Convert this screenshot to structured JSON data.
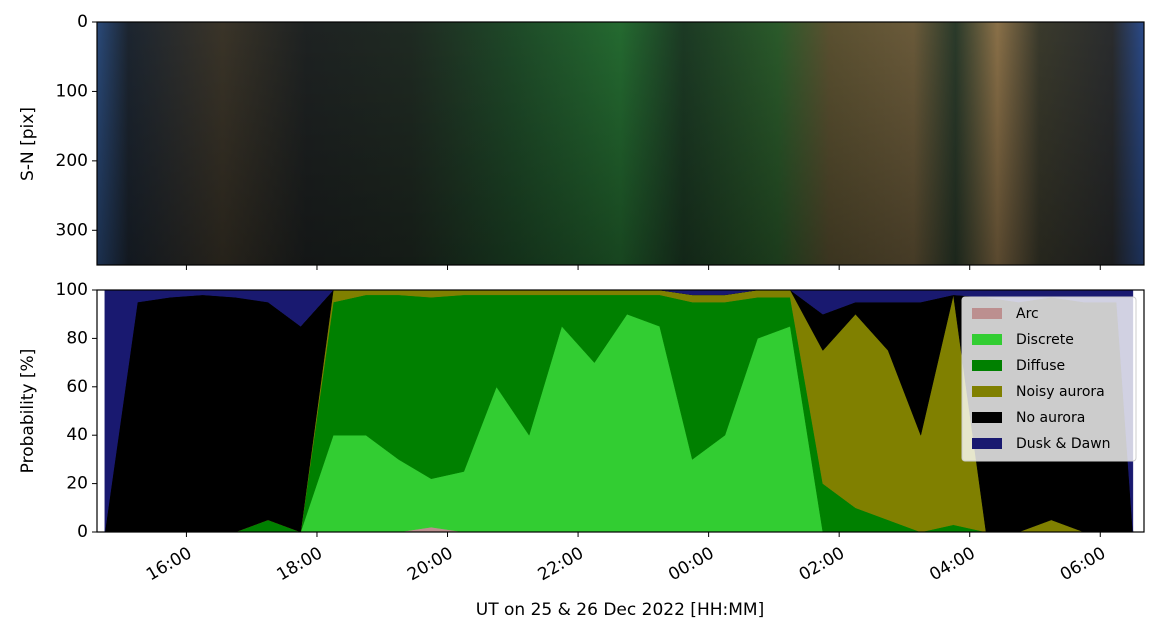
{
  "chart_data": [
    {
      "type": "keogram",
      "ylabel": "S-N [pix]",
      "ylim": [
        350,
        0
      ],
      "yticks": [
        0,
        100,
        200,
        300
      ]
    },
    {
      "type": "stackedarea",
      "ylabel": "Probability [%]",
      "xlabel": "UT on 25 & 26 Dec 2022 [HH:MM]",
      "xlim": [
        14.63,
        30.67
      ],
      "xticks": [
        {
          "value": 16,
          "label": "16:00"
        },
        {
          "value": 18,
          "label": "18:00"
        },
        {
          "value": 20,
          "label": "20:00"
        },
        {
          "value": 22,
          "label": "22:00"
        },
        {
          "value": 24,
          "label": "00:00"
        },
        {
          "value": 26,
          "label": "02:00"
        },
        {
          "value": 28,
          "label": "04:00"
        },
        {
          "value": 30,
          "label": "06:00"
        }
      ],
      "ylim": [
        0,
        100
      ],
      "yticks": [
        0,
        20,
        40,
        60,
        80,
        100
      ],
      "legend": "upper right",
      "x": [
        14.75,
        15.25,
        15.75,
        16.25,
        16.75,
        17.25,
        17.75,
        18.25,
        18.75,
        19.25,
        19.75,
        20.25,
        20.75,
        21.25,
        21.75,
        22.25,
        22.75,
        23.25,
        23.75,
        24.25,
        24.75,
        25.25,
        25.75,
        26.25,
        26.75,
        27.25,
        27.75,
        28.25,
        28.75,
        29.25,
        29.75,
        30.25,
        30.5
      ],
      "series": [
        {
          "name": "Arc",
          "color": "#bc8f8f",
          "values": [
            0,
            0,
            0,
            0,
            0,
            0,
            0,
            0,
            0,
            0,
            2,
            0,
            0,
            0,
            0,
            0,
            0,
            0,
            0,
            0,
            0,
            0,
            0,
            0,
            0,
            0,
            0,
            0,
            0,
            0,
            0,
            0,
            0
          ]
        },
        {
          "name": "Discrete",
          "color": "#32cd32",
          "values": [
            0,
            0,
            0,
            0,
            0,
            0,
            0,
            40,
            40,
            30,
            20,
            25,
            60,
            40,
            85,
            70,
            90,
            85,
            30,
            40,
            80,
            85,
            0,
            0,
            0,
            0,
            0,
            0,
            0,
            0,
            0,
            0,
            0
          ]
        },
        {
          "name": "Diffuse",
          "color": "#008000",
          "values": [
            0,
            0,
            0,
            0,
            0,
            5,
            0,
            55,
            58,
            68,
            75,
            73,
            38,
            58,
            13,
            28,
            8,
            13,
            65,
            55,
            17,
            12,
            20,
            10,
            5,
            0,
            3,
            0,
            0,
            0,
            0,
            0,
            0
          ]
        },
        {
          "name": "Noisy aurora",
          "color": "#808000",
          "values": [
            0,
            0,
            0,
            0,
            0,
            0,
            0,
            5,
            2,
            2,
            3,
            2,
            2,
            2,
            2,
            2,
            2,
            2,
            3,
            3,
            3,
            3,
            55,
            80,
            70,
            40,
            95,
            0,
            0,
            5,
            0,
            0,
            0
          ]
        },
        {
          "name": "No aurora",
          "color": "#000000",
          "values": [
            0,
            95,
            97,
            98,
            97,
            90,
            85,
            0,
            0,
            0,
            0,
            0,
            0,
            0,
            0,
            0,
            0,
            0,
            0,
            0,
            0,
            0,
            15,
            5,
            20,
            55,
            0,
            97,
            95,
            92,
            95,
            95,
            0
          ]
        },
        {
          "name": "Dusk & Dawn",
          "color": "#191970",
          "values": [
            100,
            5,
            3,
            2,
            3,
            5,
            15,
            0,
            0,
            0,
            0,
            0,
            0,
            0,
            0,
            0,
            0,
            0,
            2,
            2,
            0,
            0,
            10,
            5,
            5,
            5,
            2,
            3,
            5,
            3,
            5,
            5,
            100
          ]
        }
      ]
    }
  ]
}
